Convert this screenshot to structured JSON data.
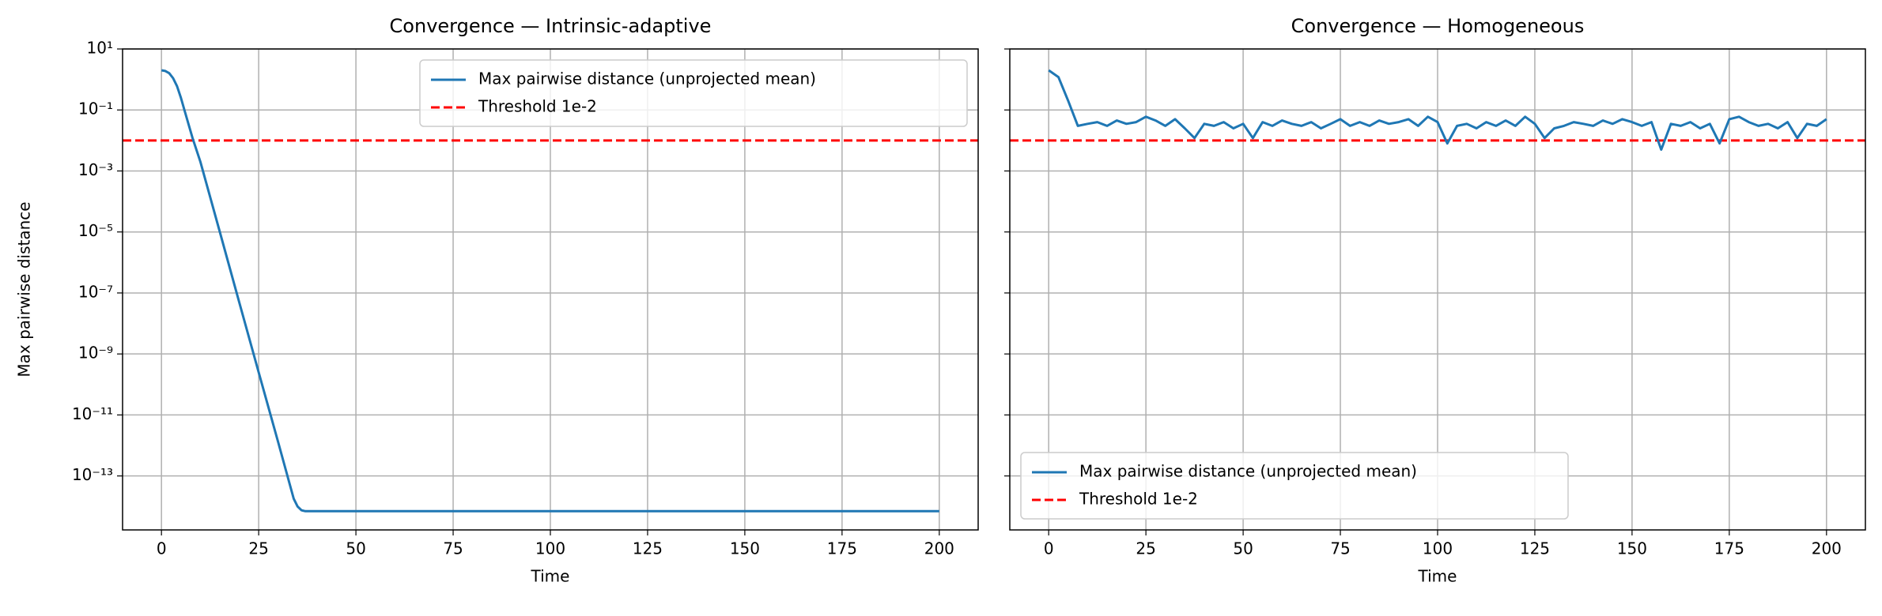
{
  "chart_data": [
    {
      "type": "line",
      "title": "Convergence — Intrinsic-adaptive",
      "xlabel": "Time",
      "ylabel": "Max pairwise distance",
      "yscale": "log",
      "grid": true,
      "legend": "upper right",
      "xlim": [
        -10,
        210
      ],
      "xticks": [
        0,
        25,
        50,
        75,
        100,
        125,
        150,
        175,
        200
      ],
      "ylim": [
        1.7e-15,
        10
      ],
      "yticks": [
        {
          "value": 10,
          "label": "10¹"
        },
        {
          "value": 0.1,
          "label": "10⁻¹"
        },
        {
          "value": 0.001,
          "label": "10⁻³"
        },
        {
          "value": 1e-05,
          "label": "10⁻⁵"
        },
        {
          "value": 1e-07,
          "label": "10⁻⁷"
        },
        {
          "value": 1e-09,
          "label": "10⁻⁹"
        },
        {
          "value": 1e-11,
          "label": "10⁻¹¹"
        },
        {
          "value": 1e-13,
          "label": "10⁻¹³"
        }
      ],
      "series": [
        {
          "name": "Max pairwise distance (unprojected mean)",
          "color": "#1f77b4",
          "x": [
            0,
            1,
            2,
            3,
            4,
            5,
            6,
            8,
            10,
            15,
            20,
            25,
            30,
            34,
            35,
            36,
            37,
            38,
            50,
            100,
            150,
            200
          ],
          "values": [
            2,
            1.9,
            1.6,
            1.1,
            0.6,
            0.25,
            0.09,
            0.012,
            0.002,
            1e-05,
            5e-08,
            2.5e-10,
            1.3e-12,
            1.8e-14,
            1e-14,
            7.5e-15,
            7e-15,
            7e-15,
            7e-15,
            7e-15,
            7e-15,
            7e-15
          ]
        }
      ],
      "threshold": {
        "name": "Threshold 1e-2",
        "color": "#ff0000",
        "value": 0.01
      }
    },
    {
      "type": "line",
      "title": "Convergence — Homogeneous",
      "xlabel": "Time",
      "yscale": "log",
      "grid": true,
      "legend": "lower left",
      "sharey": true,
      "xlim": [
        -10,
        210
      ],
      "xticks": [
        0,
        25,
        50,
        75,
        100,
        125,
        150,
        175,
        200
      ],
      "ylim": [
        1.7e-15,
        10
      ],
      "series": [
        {
          "name": "Max pairwise distance (unprojected mean)",
          "color": "#1f77b4",
          "x": [
            0,
            2.5,
            5,
            7.5,
            10,
            12.5,
            15,
            17.5,
            20,
            22.5,
            25,
            27.5,
            30,
            32.5,
            35,
            37.5,
            40,
            42.5,
            45,
            47.5,
            50,
            52.5,
            55,
            57.5,
            60,
            62.5,
            65,
            67.5,
            70,
            72.5,
            75,
            77.5,
            80,
            82.5,
            85,
            87.5,
            90,
            92.5,
            95,
            97.5,
            100,
            102.5,
            105,
            107.5,
            110,
            112.5,
            115,
            117.5,
            120,
            122.5,
            125,
            127.5,
            130,
            132.5,
            135,
            137.5,
            140,
            142.5,
            145,
            147.5,
            150,
            152.5,
            155,
            157.5,
            160,
            162.5,
            165,
            167.5,
            170,
            172.5,
            175,
            177.5,
            180,
            182.5,
            185,
            187.5,
            190,
            192.5,
            195,
            197.5,
            200
          ],
          "values": [
            2,
            1.2,
            0.2,
            0.03,
            0.035,
            0.04,
            0.03,
            0.045,
            0.035,
            0.04,
            0.06,
            0.045,
            0.03,
            0.05,
            0.025,
            0.012,
            0.035,
            0.03,
            0.04,
            0.025,
            0.035,
            0.012,
            0.04,
            0.03,
            0.045,
            0.035,
            0.03,
            0.04,
            0.025,
            0.035,
            0.05,
            0.03,
            0.04,
            0.03,
            0.045,
            0.035,
            0.04,
            0.05,
            0.03,
            0.06,
            0.04,
            0.008,
            0.03,
            0.035,
            0.025,
            0.04,
            0.03,
            0.045,
            0.03,
            0.06,
            0.035,
            0.012,
            0.025,
            0.03,
            0.04,
            0.035,
            0.03,
            0.045,
            0.035,
            0.05,
            0.04,
            0.03,
            0.04,
            0.005,
            0.035,
            0.03,
            0.04,
            0.025,
            0.035,
            0.008,
            0.05,
            0.06,
            0.04,
            0.03,
            0.035,
            0.025,
            0.04,
            0.012,
            0.035,
            0.03,
            0.05
          ]
        }
      ],
      "threshold": {
        "name": "Threshold 1e-2",
        "color": "#ff0000",
        "value": 0.01
      }
    }
  ]
}
